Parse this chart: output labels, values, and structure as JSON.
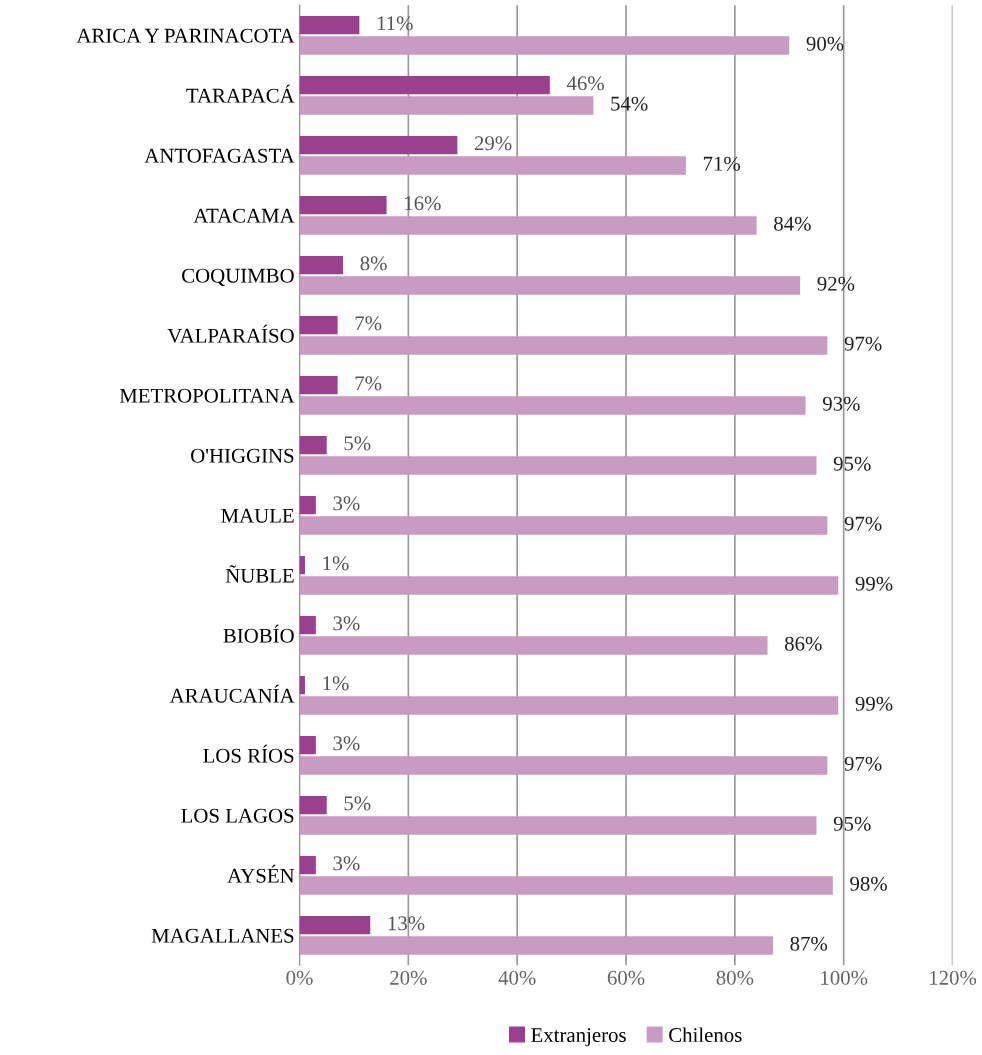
{
  "chart_data": {
    "type": "bar",
    "orientation": "horizontal",
    "categories": [
      "ARICA Y PARINACOTA",
      "TARAPACÁ",
      "ANTOFAGASTA",
      "ATACAMA",
      "COQUIMBO",
      "VALPARAÍSO",
      "METROPOLITANA",
      "O'HIGGINS",
      "MAULE",
      "ÑUBLE",
      "BIOBÍO",
      "ARAUCANÍA",
      "LOS RÍOS",
      "LOS LAGOS",
      "AYSÉN",
      "MAGALLANES"
    ],
    "series": [
      {
        "name": "Extranjeros",
        "color": "#9b3f8f",
        "values": [
          11,
          46,
          29,
          16,
          8,
          7,
          7,
          5,
          3,
          1,
          3,
          1,
          3,
          5,
          3,
          13
        ],
        "value_labels": [
          "11%",
          "46%",
          "29%",
          "16%",
          "8%",
          "7%",
          "7%",
          "5%",
          "3%",
          "1%",
          "3%",
          "1%",
          "3%",
          "5%",
          "3%",
          "13%"
        ]
      },
      {
        "name": "Chilenos",
        "color": "#c89bc2",
        "values": [
          90,
          54,
          71,
          84,
          92,
          97,
          93,
          95,
          97,
          99,
          86,
          99,
          97,
          95,
          98,
          87
        ],
        "value_labels": [
          "90%",
          "54%",
          "71%",
          "84%",
          "92%",
          "97%",
          "93%",
          "95%",
          "97%",
          "99%",
          "86%",
          "99%",
          "97%",
          "95%",
          "98%",
          "87%"
        ]
      }
    ],
    "xlim": [
      0,
      120
    ],
    "xticks": [
      {
        "value": 0,
        "label": "0%"
      },
      {
        "value": 20,
        "label": "20%"
      },
      {
        "value": 40,
        "label": "40%"
      },
      {
        "value": 60,
        "label": "60%"
      },
      {
        "value": 80,
        "label": "80%"
      },
      {
        "value": 100,
        "label": "100%"
      },
      {
        "value": 120,
        "label": "120%"
      }
    ],
    "grid": "x",
    "legend": "bottom"
  }
}
